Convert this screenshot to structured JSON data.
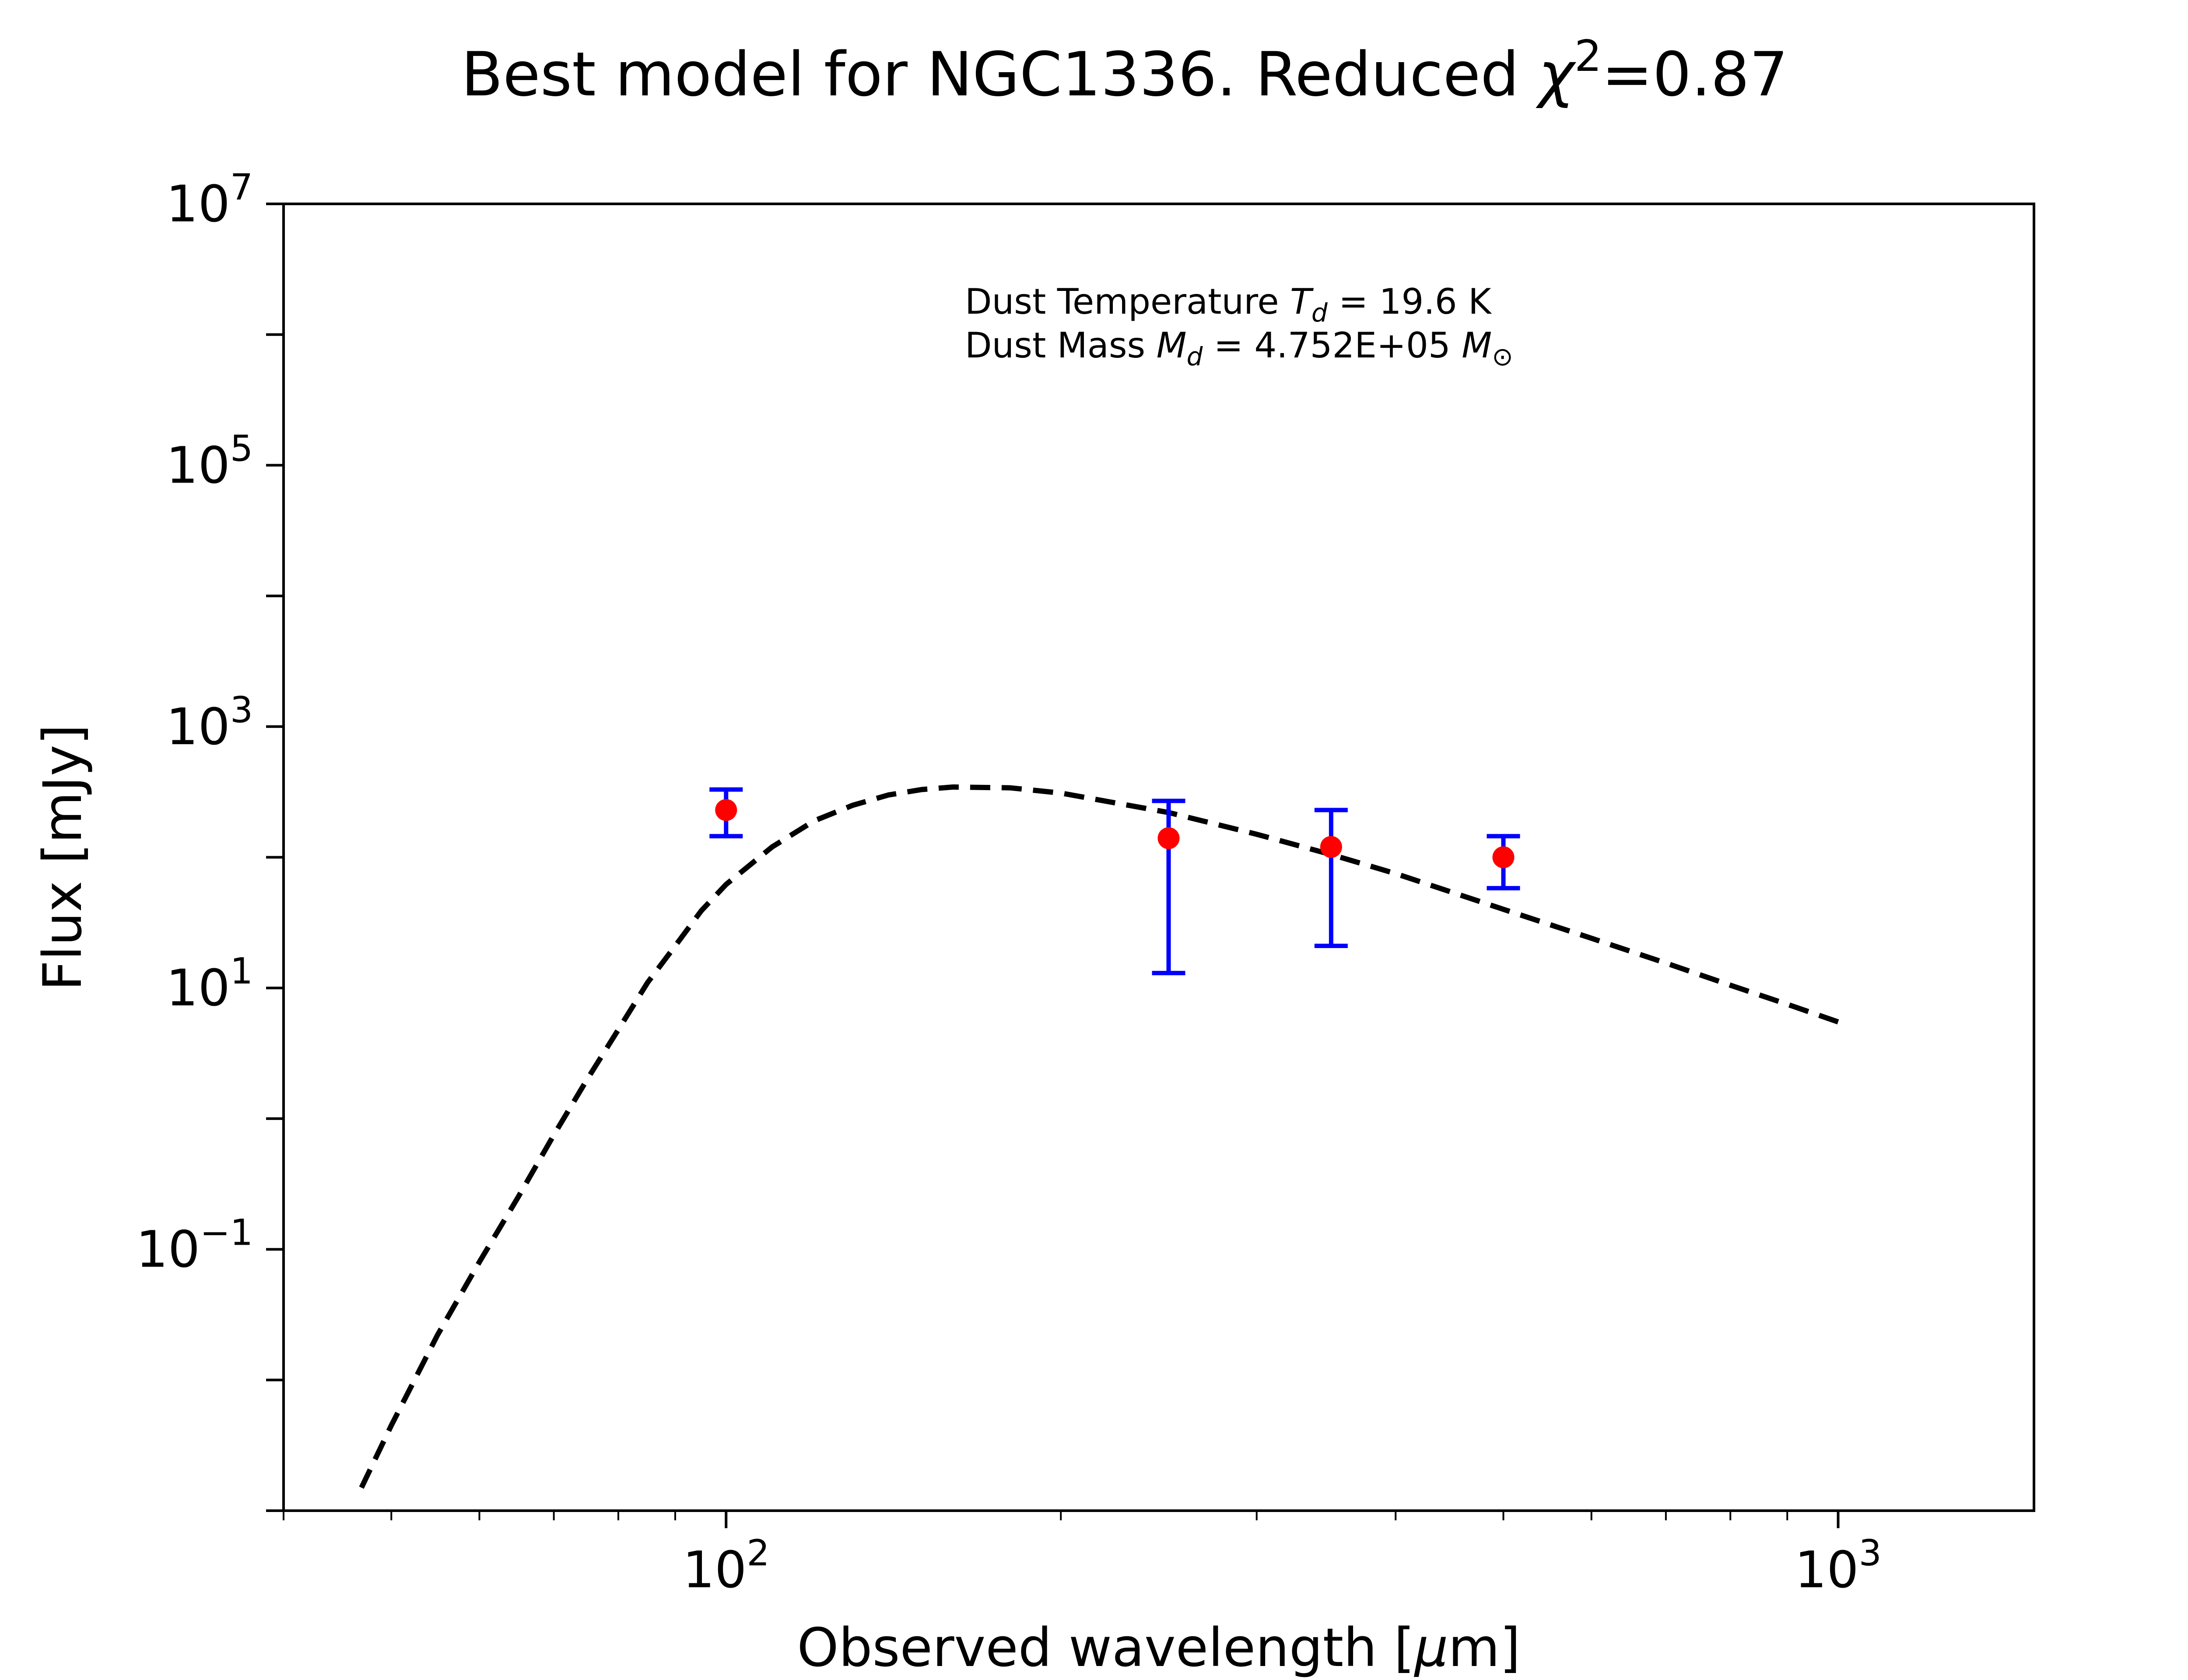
{
  "chart_data": {
    "type": "scatter",
    "title": {
      "prefix": "Best model for NGC1336. Reduced ",
      "symbol": "χ",
      "exponent": "2",
      "suffix": "=0.87"
    },
    "xlabel": {
      "prefix": "Observed wavelength [",
      "symbol": "μ",
      "suffix": "m]"
    },
    "ylabel": "Flux [mJy]",
    "x_scale": "log",
    "y_scale": "log",
    "xlim": [
      40,
      1500
    ],
    "ylim": [
      0.001,
      10000000
    ],
    "x_ticks": [
      {
        "value": 100,
        "base": "10",
        "exp": "2"
      },
      {
        "value": 1000,
        "base": "10",
        "exp": "3"
      }
    ],
    "y_ticks": [
      {
        "value": 0.1,
        "base": "10",
        "exp": "−1"
      },
      {
        "value": 10,
        "base": "10",
        "exp": "1"
      },
      {
        "value": 1000,
        "base": "10",
        "exp": "3"
      },
      {
        "value": 100000,
        "base": "10",
        "exp": "5"
      },
      {
        "value": 10000000,
        "base": "10",
        "exp": "7"
      }
    ],
    "grid": false,
    "annotations": {
      "line1": {
        "prefix": "Dust Temperature ",
        "symbol": "T",
        "sub": "d",
        "suffix": " = 19.6 K"
      },
      "line2": {
        "prefix": "Dust Mass ",
        "symbol": "M",
        "sub": "d",
        "middle": " = 4.752E+05 ",
        "unit_symbol": "M",
        "unit_sub": "⊙"
      }
    },
    "series": [
      {
        "kind": "model",
        "style": "dashed",
        "color": "#000000",
        "x": [
          47,
          50,
          55,
          60,
          65,
          70,
          75,
          80,
          85,
          90,
          95,
          100,
          110,
          120,
          130,
          140,
          150,
          160,
          180,
          200,
          250,
          300,
          350,
          400,
          500,
          600,
          700,
          800,
          900,
          1000
        ],
        "y": [
          0.0015,
          0.0045,
          0.022,
          0.08,
          0.25,
          0.75,
          2.0,
          4.8,
          11,
          21,
          39,
          62,
          120,
          190,
          250,
          300,
          330,
          345,
          340,
          310,
          220,
          150,
          105,
          75,
          40,
          24,
          15.5,
          10.5,
          7.5,
          5.5
        ]
      },
      {
        "kind": "observed",
        "marker_color": "#ff0000",
        "errorbar_color": "#0000ff",
        "points": [
          {
            "x": 100,
            "y": 230,
            "ylo": 145,
            "yhi": 330
          },
          {
            "x": 250,
            "y": 140,
            "ylo": 13,
            "yhi": 270
          },
          {
            "x": 350,
            "y": 120,
            "ylo": 21,
            "yhi": 230
          },
          {
            "x": 500,
            "y": 100,
            "ylo": 58,
            "yhi": 145
          }
        ]
      }
    ]
  }
}
